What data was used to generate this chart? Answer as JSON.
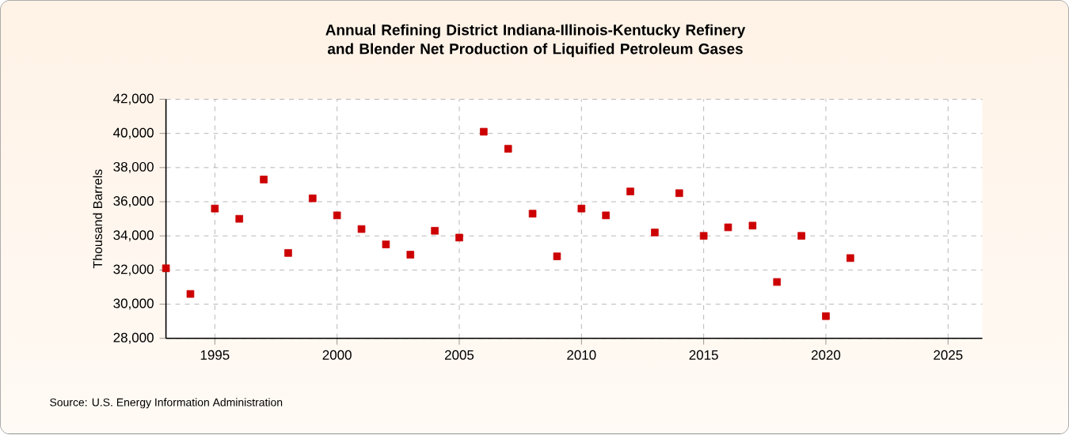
{
  "chart_data": {
    "type": "scatter",
    "title": "Annual Refining District Indiana-Illinois-Kentucky Refinery and Blender Net Production of Liquified Petroleum Gases",
    "ylabel": "Thousand Barrels",
    "annotations": [
      "Source: U.S. Energy Information Administration"
    ],
    "x": [
      1993,
      1994,
      1995,
      1996,
      1997,
      1998,
      1999,
      2000,
      2001,
      2002,
      2003,
      2004,
      2005,
      2006,
      2007,
      2008,
      2009,
      2010,
      2011,
      2012,
      2013,
      2014,
      2015,
      2016,
      2017,
      2018,
      2019,
      2020,
      2021
    ],
    "series": [
      {
        "color": "#cc0000",
        "values": [
          32100,
          30600,
          35600,
          35000,
          37300,
          33000,
          36200,
          35200,
          34400,
          33500,
          32900,
          34300,
          33900,
          40100,
          39100,
          35300,
          32800,
          35600,
          35200,
          36600,
          34200,
          36500,
          34000,
          34500,
          34600,
          31300,
          34000,
          29300,
          32700
        ]
      }
    ],
    "xlim": [
      1993,
      2026.4
    ],
    "ylim": [
      28000,
      42000
    ],
    "xticks": [
      1995,
      2000,
      2005,
      2010,
      2015,
      2020,
      2025
    ],
    "yticks": [
      {
        "value": 28000,
        "label": "28,000"
      },
      {
        "value": 30000,
        "label": "30,000"
      },
      {
        "value": 32000,
        "label": "32,000"
      },
      {
        "value": 34000,
        "label": "34,000"
      },
      {
        "value": 36000,
        "label": "36,000"
      },
      {
        "value": 38000,
        "label": "38,000"
      },
      {
        "value": 40000,
        "label": "40,000"
      },
      {
        "value": 42000,
        "label": "42,000"
      }
    ],
    "grid": true,
    "marker": "square"
  }
}
